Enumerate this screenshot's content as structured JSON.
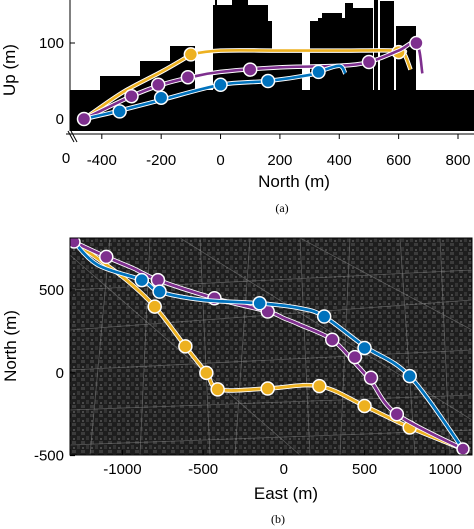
{
  "chart_data": [
    {
      "type": "line",
      "panel": "3d-side-view",
      "caption": "(a)",
      "xlabel": "North (m)",
      "ylabel": "Up (m)",
      "xlim": [
        -500,
        800
      ],
      "ylim": [
        -10,
        150
      ],
      "xticks": [
        "-400",
        "-200",
        "0",
        "200",
        "400",
        "600",
        "800"
      ],
      "xtick_values": [
        -400,
        -200,
        0,
        200,
        400,
        600,
        800
      ],
      "yticks": [
        "0",
        "100"
      ],
      "ytick_values": [
        0,
        100
      ],
      "extra_tick_label": "0",
      "series": [
        {
          "color": "#EDB120",
          "x": [
            -460,
            -330,
            -200,
            -120,
            -100,
            0,
            200,
            400,
            600,
            620,
            640
          ],
          "y": [
            0,
            35,
            62,
            80,
            85,
            90,
            90,
            90,
            90,
            85,
            65
          ],
          "marker_x": [
            -100,
            600
          ],
          "marker_y": [
            85,
            88
          ]
        },
        {
          "color": "#7E2F8E",
          "x": [
            -460,
            -300,
            -200,
            -100,
            0,
            200,
            400,
            500,
            600,
            660,
            680
          ],
          "y": [
            0,
            30,
            45,
            55,
            62,
            68,
            70,
            75,
            90,
            100,
            60
          ],
          "marker_x": [
            -300,
            -210,
            -110,
            100,
            500,
            660
          ],
          "marker_y": [
            30,
            45,
            55,
            65,
            75,
            100
          ]
        },
        {
          "color": "#0072BD",
          "x": [
            -460,
            -350,
            -200,
            0,
            160,
            300,
            330,
            400,
            420
          ],
          "y": [
            0,
            10,
            25,
            45,
            50,
            58,
            62,
            70,
            60
          ],
          "marker_x": [
            -340,
            -200,
            0,
            160,
            330
          ],
          "marker_y": [
            10,
            28,
            45,
            50,
            62
          ]
        }
      ],
      "start_marker": {
        "x": -460,
        "y": 0,
        "color": "#7E2F8E"
      }
    },
    {
      "type": "line",
      "panel": "top-view",
      "caption": "(b)",
      "xlabel": "East (m)",
      "ylabel": "North (m)",
      "xlim": [
        -1300,
        1150
      ],
      "ylim": [
        -500,
        800
      ],
      "xticks": [
        "-1000",
        "-500",
        "0",
        "500",
        "1000"
      ],
      "xtick_values": [
        -1000,
        -500,
        0,
        500,
        1000
      ],
      "yticks": [
        "-500",
        "0",
        "500"
      ],
      "ytick_values": [
        -500,
        0,
        500
      ],
      "series": [
        {
          "color": "#EDB120",
          "x": [
            -1300,
            -1000,
            -800,
            -610,
            -480,
            -400,
            -100,
            220,
            500,
            780,
            1110
          ],
          "y": [
            790,
            580,
            400,
            160,
            0,
            -100,
            -95,
            -80,
            -200,
            -330,
            -460
          ],
          "marker_x": [
            -800,
            -610,
            -480,
            -410,
            -100,
            220,
            500,
            780
          ],
          "marker_y": [
            400,
            160,
            0,
            -100,
            -95,
            -80,
            -200,
            -330
          ]
        },
        {
          "color": "#7E2F8E",
          "x": [
            -1300,
            -1100,
            -930,
            -780,
            -430,
            -100,
            0,
            100,
            300,
            440,
            540,
            700,
            1110
          ],
          "y": [
            790,
            700,
            630,
            560,
            450,
            370,
            330,
            290,
            200,
            60,
            -50,
            -250,
            -460
          ],
          "marker_x": [
            -1100,
            -780,
            -430,
            -100,
            300,
            440,
            540,
            700
          ],
          "marker_y": [
            700,
            560,
            450,
            370,
            200,
            95,
            -30,
            -250
          ]
        },
        {
          "color": "#0072BD",
          "x": [
            -1300,
            -1150,
            -880,
            -770,
            -500,
            -150,
            100,
            250,
            500,
            780,
            1110
          ],
          "y": [
            790,
            650,
            560,
            490,
            440,
            420,
            390,
            340,
            160,
            -20,
            -460
          ],
          "marker_x": [
            -880,
            -770,
            -150,
            250,
            500,
            780
          ],
          "marker_y": [
            560,
            490,
            420,
            340,
            150,
            -20
          ]
        }
      ],
      "start_marker": {
        "x": -1300,
        "y": 790,
        "color": "#7E2F8E"
      },
      "end_marker": {
        "x": 1110,
        "y": -460,
        "color": "#7E2F8E"
      }
    }
  ]
}
